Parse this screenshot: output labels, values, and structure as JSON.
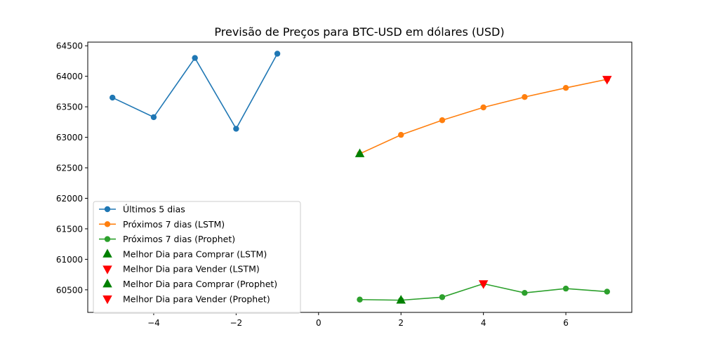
{
  "chart_data": {
    "type": "line",
    "title": "Previsão de Preços para BTC-USD em dólares (USD)",
    "xlabel": "",
    "ylabel": "",
    "xlim": [
      -5.6,
      7.6
    ],
    "ylim": [
      60130,
      64560
    ],
    "x_ticks": [
      -4,
      -2,
      0,
      2,
      4,
      6
    ],
    "x_tick_labels": [
      "−4",
      "−2",
      "0",
      "2",
      "4",
      "6"
    ],
    "y_ticks": [
      60500,
      61000,
      61500,
      62000,
      62500,
      63000,
      63500,
      64000,
      64500
    ],
    "y_tick_labels": [
      "60500",
      "61000",
      "61500",
      "62000",
      "62500",
      "63000",
      "63500",
      "64000",
      "64500"
    ],
    "grid": false,
    "legend_position": "lower-left",
    "series": [
      {
        "name": "Últimos 5 dias",
        "color": "#1f77b4",
        "marker": "circle",
        "x": [
          -5,
          -4,
          -3,
          -2,
          -1
        ],
        "y": [
          63650,
          63330,
          64300,
          63140,
          64370
        ]
      },
      {
        "name": "Próximos 7 dias (LSTM)",
        "color": "#ff7f0e",
        "marker": "circle",
        "x": [
          1,
          2,
          3,
          4,
          5,
          6,
          7
        ],
        "y": [
          62730,
          63040,
          63280,
          63490,
          63660,
          63810,
          63950
        ]
      },
      {
        "name": "Próximos 7 dias (Prophet)",
        "color": "#2ca02c",
        "marker": "circle",
        "x": [
          1,
          2,
          3,
          4,
          5,
          6,
          7
        ],
        "y": [
          60340,
          60330,
          60380,
          60600,
          60450,
          60520,
          60470
        ]
      }
    ],
    "markers": [
      {
        "name": "Melhor Dia para Comprar (LSTM)",
        "color": "#008000",
        "shape": "triangle-up",
        "x": 1,
        "y": 62730
      },
      {
        "name": "Melhor Dia para Vender (LSTM)",
        "color": "#ff0000",
        "shape": "triangle-down",
        "x": 7,
        "y": 63950
      },
      {
        "name": "Melhor Dia para Comprar (Prophet)",
        "color": "#008000",
        "shape": "triangle-up",
        "x": 2,
        "y": 60330
      },
      {
        "name": "Melhor Dia para Vender (Prophet)",
        "color": "#ff0000",
        "shape": "triangle-down",
        "x": 4,
        "y": 60600
      }
    ]
  }
}
